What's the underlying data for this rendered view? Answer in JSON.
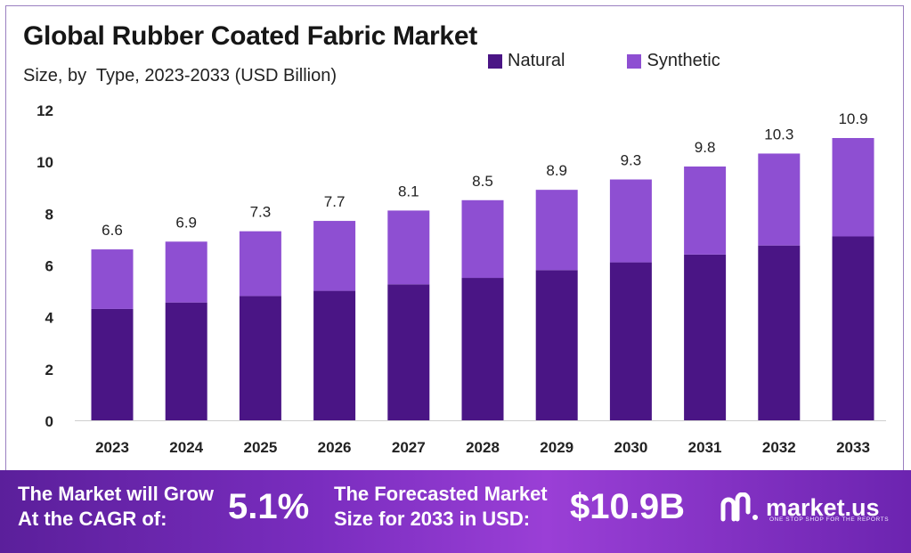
{
  "header": {
    "title": "Global Rubber Coated Fabric Market",
    "subtitle": "Size, by  Type, 2023-2033 (USD Billion)"
  },
  "colors": {
    "natural": "#4a1585",
    "synthetic": "#8e4fd2",
    "axis": "#cfcfcf",
    "banner_start": "#5b1f9b",
    "banner_end": "#9a3fd6"
  },
  "chart_data": {
    "type": "bar",
    "stacked": true,
    "title": "Global Rubber Coated Fabric Market",
    "subtitle": "Size, by  Type, 2023-2033 (USD Billion)",
    "categories": [
      "2023",
      "2024",
      "2025",
      "2026",
      "2027",
      "2028",
      "2029",
      "2030",
      "2031",
      "2032",
      "2033"
    ],
    "series": [
      {
        "name": "Natural",
        "values": [
          4.3,
          4.55,
          4.8,
          5.0,
          5.25,
          5.5,
          5.8,
          6.1,
          6.4,
          6.75,
          7.1
        ]
      },
      {
        "name": "Synthetic",
        "values": [
          2.3,
          2.35,
          2.5,
          2.7,
          2.85,
          3.0,
          3.1,
          3.2,
          3.4,
          3.55,
          3.8
        ]
      }
    ],
    "totals": [
      "6.6",
      "6.9",
      "7.3",
      "7.7",
      "8.1",
      "8.5",
      "8.9",
      "9.3",
      "9.8",
      "10.3",
      "10.9"
    ],
    "ylim": [
      0,
      12
    ],
    "yticks": [
      "0",
      "2",
      "4",
      "6",
      "8",
      "10",
      "12"
    ],
    "xlabel": "",
    "ylabel": "",
    "legend_position": "top-right",
    "grid": false
  },
  "banner": {
    "cagr_label": "The Market will Grow\nAt the CAGR of:",
    "cagr_value": "5.1%",
    "forecast_label": "The Forecasted Market\nSize for 2033 in USD:",
    "forecast_value": "$10.9B"
  },
  "brand": {
    "name": "market.us",
    "tagline": "ONE STOP SHOP FOR THE REPORTS",
    "icon": "market-us-logo-icon"
  }
}
